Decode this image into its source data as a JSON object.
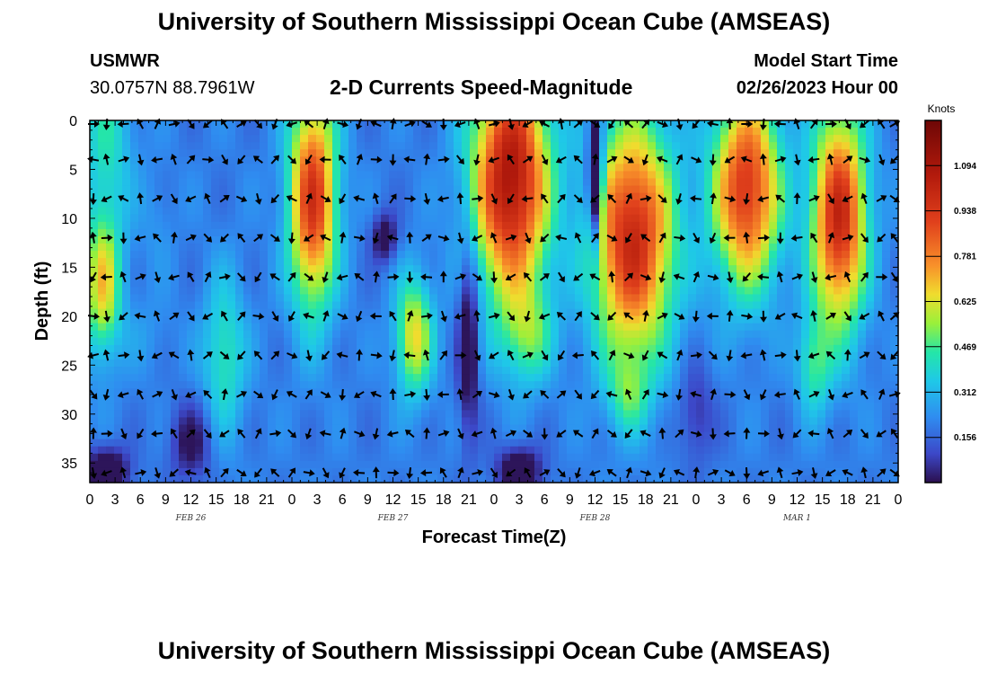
{
  "header": {
    "title": "University of Southern Mississippi Ocean Cube (AMSEAS)",
    "station": "USMWR",
    "location": "30.0757N  88.7961W",
    "plot_title": "2-D Currents Speed-Magnitude",
    "model_start_label": "Model Start Time",
    "model_start_value": "02/26/2023 Hour 00"
  },
  "footer": {
    "title": "University of Southern Mississippi Ocean Cube (AMSEAS)"
  },
  "chart_data": {
    "type": "heatmap",
    "title": "2-D Currents Speed-Magnitude",
    "xlabel": "Forecast Time(Z)",
    "ylabel": "Depth (ft)",
    "x_tick_labels": [
      "0",
      "3",
      "6",
      "9",
      "12",
      "15",
      "18",
      "21",
      "0",
      "3",
      "6",
      "9",
      "12",
      "15",
      "18",
      "21",
      "0",
      "3",
      "6",
      "9",
      "12",
      "15",
      "18",
      "21",
      "0",
      "3",
      "6",
      "9",
      "12",
      "15",
      "18",
      "21",
      "0"
    ],
    "date_labels": [
      {
        "label": "FEB 26",
        "hour": 12
      },
      {
        "label": "FEB 27",
        "hour": 36
      },
      {
        "label": "FEB 28",
        "hour": 60
      },
      {
        "label": "MAR 1",
        "hour": 84
      }
    ],
    "xlim_hours": [
      0,
      96
    ],
    "ylim_ft": [
      0,
      37
    ],
    "y_ticks": [
      0,
      5,
      10,
      15,
      20,
      25,
      30,
      35
    ],
    "colorbar": {
      "title": "Knots",
      "ticks": [
        "1.094",
        "0.938",
        "0.781",
        "0.625",
        "0.469",
        "0.312",
        "0.156"
      ],
      "tick_values": [
        1.094,
        0.938,
        0.781,
        0.625,
        0.469,
        0.312,
        0.156
      ],
      "range": [
        0,
        1.25
      ]
    },
    "speed_features": [
      {
        "name": "hour0-3 surface core",
        "hour": 2,
        "depth": 0,
        "speed": 0.55
      },
      {
        "name": "hour1-3 mid core",
        "hour": 1.5,
        "depth": 17,
        "speed": 0.75
      },
      {
        "name": "hour25-28 core",
        "hour": 26.5,
        "depth": 9,
        "speed": 0.95
      },
      {
        "name": "hour38-40 mid core",
        "hour": 38.5,
        "depth": 22,
        "speed": 0.7
      },
      {
        "name": "hour47-54 core",
        "hour": 50,
        "depth": 8,
        "speed": 1.2
      },
      {
        "name": "hour61-70 core",
        "hour": 65,
        "depth": 12,
        "speed": 1.05
      },
      {
        "name": "hour75-82 core",
        "hour": 78,
        "depth": 9,
        "speed": 0.95
      },
      {
        "name": "hour87-91 core",
        "hour": 89,
        "depth": 12,
        "speed": 1.0
      },
      {
        "name": "hour60 narrow minimum",
        "hour": 60,
        "depth": 6,
        "speed": 0.05
      },
      {
        "name": "bottom minimum hour2",
        "hour": 2,
        "depth": 36,
        "speed": 0.05
      },
      {
        "name": "bottom minimum hour51",
        "hour": 51,
        "depth": 36,
        "speed": 0.05
      }
    ],
    "vector_columns_hours": [
      0,
      2,
      4,
      6,
      8,
      10,
      12,
      14,
      16,
      18,
      20,
      22,
      24,
      26,
      28,
      30,
      32,
      34,
      36,
      38,
      40,
      42,
      44,
      46,
      48,
      50,
      52,
      54,
      56,
      58,
      60,
      62,
      64,
      66,
      68,
      70,
      72,
      74,
      76,
      78,
      80,
      82,
      84,
      86,
      88,
      90,
      92,
      94,
      96
    ],
    "vector_rows_ft": [
      0,
      4,
      8,
      12,
      16,
      20,
      24,
      28,
      32,
      36
    ]
  }
}
